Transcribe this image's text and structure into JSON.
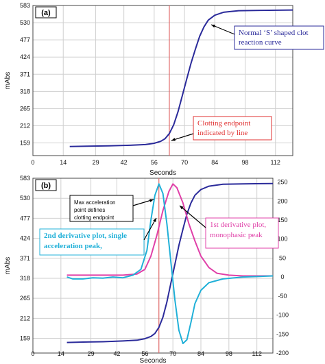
{
  "colors": {
    "navy": "#2a2a9a",
    "red": "#e03030",
    "pink": "#e040a8",
    "cyan": "#20b0d8",
    "grid": "#cfcfcf",
    "endpoint_line": "#e06a6a"
  },
  "chart_data": [
    {
      "type": "line",
      "panel_label": "(a)",
      "xlabel": "Seconds",
      "ylabel": "mAbs",
      "xlim": [
        0,
        120
      ],
      "ylim": [
        120,
        583
      ],
      "x_ticks": [
        "0",
        "14",
        "29",
        "42",
        "56",
        "70",
        "84",
        "98",
        "112"
      ],
      "y_ticks": [
        "583",
        "530",
        "477",
        "424",
        "371",
        "318",
        "265",
        "212",
        "159"
      ],
      "grid": true,
      "endpoint_x": 63,
      "series": [
        {
          "color": "navy",
          "x": [
            17,
            25,
            35,
            45,
            52,
            56,
            59,
            61,
            63,
            65,
            67,
            69,
            71,
            73,
            75,
            77,
            79,
            81,
            84,
            88,
            95,
            105,
            120
          ],
          "y": [
            148,
            149,
            150,
            152,
            154,
            158,
            164,
            172,
            188,
            215,
            255,
            305,
            355,
            405,
            448,
            488,
            517,
            538,
            553,
            562,
            567,
            568,
            569
          ]
        }
      ],
      "annotations": [
        {
          "text_lines": [
            "Normal ‘S’ shaped clot",
            "reaction curve"
          ],
          "color": "navy"
        },
        {
          "text_lines": [
            "Clotting endpoint",
            "indicated by line"
          ],
          "color": "red"
        }
      ]
    },
    {
      "type": "line",
      "panel_label": "(b)",
      "xlabel": "Seconds",
      "ylabel": "mAbs",
      "xlim": [
        0,
        120
      ],
      "ylim": [
        120,
        583
      ],
      "y2lim": [
        -200,
        260
      ],
      "x_ticks": [
        "0",
        "14",
        "29",
        "42",
        "56",
        "70",
        "84",
        "98",
        "112"
      ],
      "y_ticks": [
        "583",
        "530",
        "477",
        "424",
        "371",
        "318",
        "265",
        "212",
        "159"
      ],
      "y2_ticks": [
        "250",
        "200",
        "150",
        "100",
        "50",
        "0",
        "-50",
        "-100",
        "-150",
        "-200"
      ],
      "grid": true,
      "endpoint_x": 63,
      "series": [
        {
          "color": "navy",
          "axis": "left",
          "x": [
            17,
            25,
            35,
            45,
            52,
            56,
            59,
            61,
            63,
            65,
            67,
            69,
            71,
            73,
            75,
            77,
            79,
            81,
            84,
            88,
            95,
            105,
            120
          ],
          "y": [
            148,
            149,
            150,
            152,
            154,
            158,
            164,
            172,
            188,
            215,
            255,
            305,
            355,
            405,
            448,
            488,
            517,
            538,
            553,
            562,
            567,
            568,
            569
          ]
        },
        {
          "color": "pink",
          "axis": "right",
          "x": [
            17,
            30,
            45,
            52,
            56,
            59,
            62,
            65,
            68,
            70,
            72,
            75,
            78,
            81,
            84,
            88,
            92,
            98,
            105,
            120
          ],
          "y": [
            5,
            5,
            5,
            8,
            20,
            55,
            110,
            175,
            225,
            245,
            235,
            195,
            140,
            95,
            55,
            25,
            10,
            5,
            3,
            3
          ]
        },
        {
          "color": "cyan",
          "axis": "right",
          "x": [
            17,
            20,
            25,
            30,
            35,
            40,
            45,
            50,
            54,
            57,
            59,
            61,
            63,
            65,
            67,
            69,
            71,
            73,
            75,
            77,
            79,
            81,
            84,
            88,
            95,
            105,
            120
          ],
          "y": [
            0,
            -5,
            -5,
            -2,
            -3,
            0,
            -2,
            5,
            20,
            70,
            150,
            215,
            245,
            220,
            140,
            40,
            -60,
            -140,
            -175,
            -165,
            -120,
            -70,
            -35,
            -15,
            -5,
            0,
            3
          ]
        }
      ],
      "annotations": [
        {
          "text_lines": [
            "Max acceleration",
            "point defines",
            "clotting endpoint"
          ],
          "color": "black"
        },
        {
          "text_lines": [
            "2nd derivative plot, single",
            "acceleration peak,"
          ],
          "color": "cyan"
        },
        {
          "text_lines": [
            "1st derivative plot,",
            "monophasic peak"
          ],
          "color": "pink"
        }
      ]
    }
  ]
}
